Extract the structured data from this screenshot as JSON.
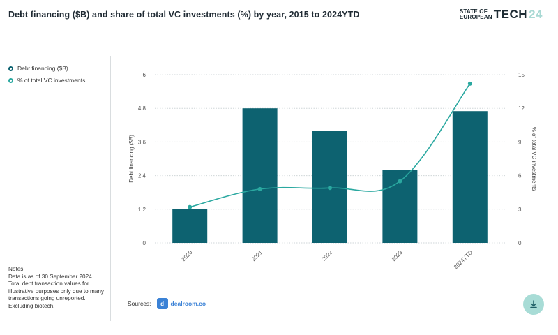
{
  "header": {
    "title": "Debt financing ($B) and share of total VC investments (%) by year, 2015 to 2024YTD",
    "brand_line1": "STATE OF",
    "brand_line2": "EUROPEAN",
    "brand_main": "TECH",
    "brand_year": "24"
  },
  "legend": {
    "items": [
      {
        "label": "Debt financing ($B)",
        "color": "#0d6270"
      },
      {
        "label": "% of total VC investments",
        "color": "#2aa8a0"
      }
    ]
  },
  "notes": {
    "heading": "Notes:",
    "text": "Data is as of 30 September 2024. Total debt transaction values for illustrative purposes only due to many transactions going unreported. Excluding biotech."
  },
  "sources": {
    "label": "Sources:",
    "logo_mark": "d",
    "logo_text": "dealroom.co"
  },
  "download": {
    "icon": "download-icon"
  },
  "chart_data": {
    "type": "bar",
    "categories": [
      "2020",
      "2021",
      "2022",
      "2023",
      "2024YTD"
    ],
    "series": [
      {
        "name": "Debt financing ($B)",
        "type": "bar",
        "axis": "left",
        "color": "#0d6270",
        "values": [
          1.2,
          4.8,
          4.0,
          2.6,
          4.7
        ]
      },
      {
        "name": "% of total VC investments",
        "type": "line",
        "axis": "right",
        "color": "#2aa8a0",
        "values": [
          3.2,
          4.8,
          4.9,
          5.5,
          14.2
        ]
      }
    ],
    "ylabel": "Debt financing ($B)",
    "ylabel_right": "% of total VC investments",
    "ylim": [
      0,
      6
    ],
    "yticks": [
      "0",
      "1.2",
      "2.4",
      "3.6",
      "4.8",
      "6"
    ],
    "ylim_right": [
      0,
      15
    ],
    "yticks_right": [
      "0",
      "3",
      "6",
      "9",
      "12",
      "15"
    ],
    "grid": "dotted horizontal"
  }
}
